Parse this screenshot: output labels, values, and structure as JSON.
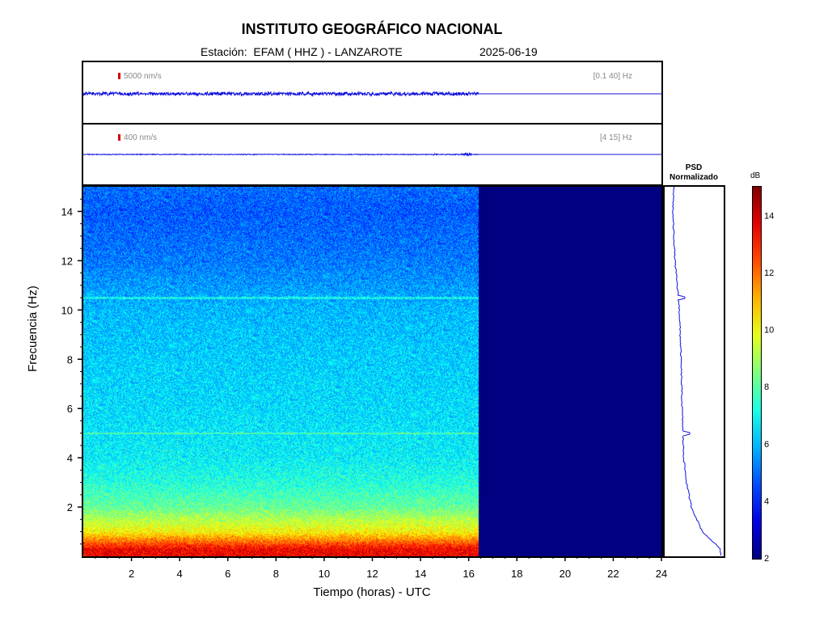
{
  "header": {
    "title": "INSTITUTO GEOGRÁFICO NACIONAL",
    "station": "Estación:  EFAM ( HHZ ) - LANZAROTE",
    "date": "2025-06-19"
  },
  "traces": [
    {
      "amplitude_label": "5000 nm/s",
      "band_label": "[0.1 40] Hz",
      "data_end_hour": 16.4
    },
    {
      "amplitude_label": "400 nm/s",
      "band_label": "[4 15] Hz",
      "data_end_hour": 16.4
    }
  ],
  "psd": {
    "title_line1": "PSD",
    "title_line2": "Normalizado"
  },
  "colorbar": {
    "label": "dB",
    "min": 2,
    "max": 15,
    "ticks": [
      2,
      4,
      6,
      8,
      10,
      12,
      14
    ]
  },
  "chart_data": {
    "type": "heatmap",
    "xlabel": "Tiempo (horas) - UTC",
    "ylabel": "Frecuencia  (Hz)",
    "xlim": [
      0,
      24
    ],
    "ylim": [
      0,
      15
    ],
    "x_ticks": [
      2,
      4,
      6,
      8,
      10,
      12,
      14,
      16,
      18,
      20,
      22,
      24
    ],
    "y_ticks": [
      2,
      4,
      6,
      8,
      10,
      12,
      14
    ],
    "data_end_hour": 16.4,
    "spectral_lines_hz": [
      5.0,
      10.5
    ],
    "frequency_profile": [
      {
        "hz": 0.3,
        "db": 13.5
      },
      {
        "hz": 1,
        "db": 10.2
      },
      {
        "hz": 2,
        "db": 8.2
      },
      {
        "hz": 3,
        "db": 7.3
      },
      {
        "hz": 4,
        "db": 6.8
      },
      {
        "hz": 6,
        "db": 6.5
      },
      {
        "hz": 8,
        "db": 6.3
      },
      {
        "hz": 10,
        "db": 6.0
      },
      {
        "hz": 12,
        "db": 5.2
      },
      {
        "hz": 14,
        "db": 4.8
      },
      {
        "hz": 15,
        "db": 5.0
      }
    ],
    "background_db": 2
  }
}
